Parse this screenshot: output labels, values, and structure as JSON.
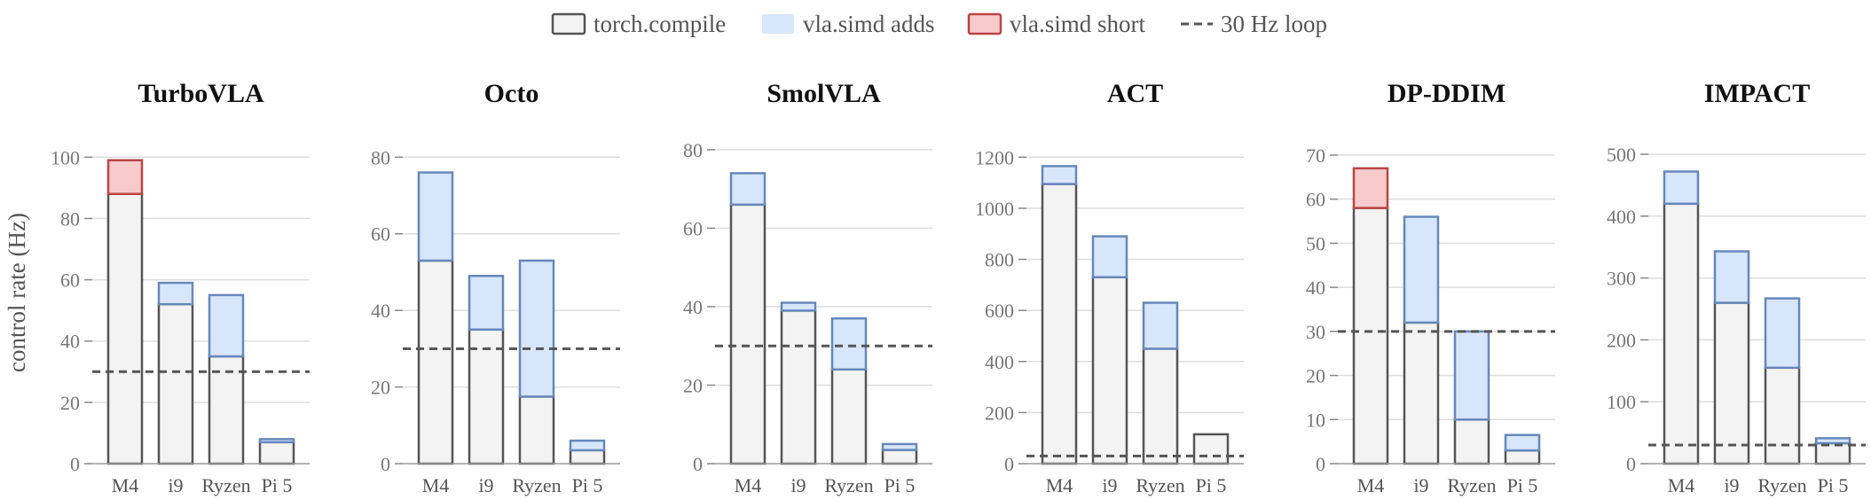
{
  "legend": {
    "items": [
      {
        "key": "base",
        "label": "torch.compile"
      },
      {
        "key": "adds",
        "label": "vla.simd adds"
      },
      {
        "key": "short",
        "label": "vla.simd short"
      },
      {
        "key": "loop",
        "label": "30 Hz loop"
      }
    ]
  },
  "ylabel": "control rate (Hz)",
  "colors": {
    "base_fill": "#f3f3f3",
    "base_edge": "#555555",
    "adds_fill": "#d7e6fa",
    "adds_edge": "#6688bb",
    "short_fill": "#f7cbcb",
    "short_edge": "#bb4444",
    "loop_line": "#555555",
    "grid": "#dddddd",
    "tick_text": "#777777"
  },
  "chart_data": [
    {
      "type": "bar",
      "title": "TurboVLA",
      "categories": [
        "M4",
        "i9",
        "Ryzen",
        "Pi 5"
      ],
      "series": [
        {
          "name": "torch.compile",
          "values": [
            88,
            52,
            35,
            7
          ]
        },
        {
          "name": "vla.simd adds",
          "values": [
            0,
            7,
            20,
            1
          ]
        },
        {
          "name": "vla.simd short",
          "values": [
            11,
            0,
            0,
            0
          ]
        }
      ],
      "ylabel": "control rate (Hz)",
      "ylim": [
        0,
        105
      ],
      "yticks": [
        0,
        20,
        40,
        60,
        80,
        100
      ],
      "reference_line": {
        "name": "30 Hz loop",
        "y": 30
      },
      "grid": true
    },
    {
      "type": "bar",
      "title": "Octo",
      "categories": [
        "M4",
        "i9",
        "Ryzen",
        "Pi 5"
      ],
      "series": [
        {
          "name": "torch.compile",
          "values": [
            53,
            35,
            17.5,
            3.5
          ]
        },
        {
          "name": "vla.simd adds",
          "values": [
            23,
            14,
            35.5,
            2.5
          ]
        },
        {
          "name": "vla.simd short",
          "values": [
            0,
            0,
            0,
            0
          ]
        }
      ],
      "ylim": [
        0,
        84
      ],
      "yticks": [
        0,
        20,
        40,
        60,
        80
      ],
      "reference_line": {
        "name": "30 Hz loop",
        "y": 30
      },
      "grid": true
    },
    {
      "type": "bar",
      "title": "SmolVLA",
      "categories": [
        "M4",
        "i9",
        "Ryzen",
        "Pi 5"
      ],
      "series": [
        {
          "name": "torch.compile",
          "values": [
            66,
            39,
            24,
            3.5
          ]
        },
        {
          "name": "vla.simd adds",
          "values": [
            8,
            2,
            13,
            1.5
          ]
        },
        {
          "name": "vla.simd short",
          "values": [
            0,
            0,
            0,
            0
          ]
        }
      ],
      "ylim": [
        0,
        82
      ],
      "yticks": [
        0,
        20,
        40,
        60,
        80
      ],
      "reference_line": {
        "name": "30 Hz loop",
        "y": 30
      },
      "grid": true
    },
    {
      "type": "bar",
      "title": "ACT",
      "categories": [
        "M4",
        "i9",
        "Ryzen",
        "Pi 5"
      ],
      "series": [
        {
          "name": "torch.compile",
          "values": [
            1095,
            730,
            450,
            115
          ]
        },
        {
          "name": "vla.simd adds",
          "values": [
            70,
            160,
            180,
            0
          ]
        },
        {
          "name": "vla.simd short",
          "values": [
            0,
            0,
            0,
            0
          ]
        }
      ],
      "ylim": [
        0,
        1260
      ],
      "yticks": [
        0,
        200,
        400,
        600,
        800,
        1000,
        1200
      ],
      "reference_line": {
        "name": "30 Hz loop",
        "y": 30
      },
      "grid": true
    },
    {
      "type": "bar",
      "title": "DP-DDIM",
      "categories": [
        "M4",
        "i9",
        "Ryzen",
        "Pi 5"
      ],
      "series": [
        {
          "name": "torch.compile",
          "values": [
            58,
            32,
            10,
            3
          ]
        },
        {
          "name": "vla.simd adds",
          "values": [
            0,
            24,
            20,
            3.5
          ]
        },
        {
          "name": "vla.simd short",
          "values": [
            9,
            0,
            0,
            0
          ]
        }
      ],
      "ylim": [
        0,
        73
      ],
      "yticks": [
        0,
        10,
        20,
        30,
        40,
        50,
        60,
        70
      ],
      "reference_line": {
        "name": "30 Hz loop",
        "y": 30
      },
      "grid": true
    },
    {
      "type": "bar",
      "title": "IMPACT",
      "categories": [
        "M4",
        "i9",
        "Ryzen",
        "Pi 5"
      ],
      "series": [
        {
          "name": "torch.compile",
          "values": [
            420,
            260,
            155,
            33
          ]
        },
        {
          "name": "vla.simd adds",
          "values": [
            52,
            83,
            112,
            8
          ]
        },
        {
          "name": "vla.simd short",
          "values": [
            0,
            0,
            0,
            0
          ]
        }
      ],
      "ylim": [
        0,
        520
      ],
      "yticks": [
        0,
        100,
        200,
        300,
        400,
        500
      ],
      "reference_line": {
        "name": "30 Hz loop",
        "y": 30
      },
      "grid": true
    }
  ]
}
